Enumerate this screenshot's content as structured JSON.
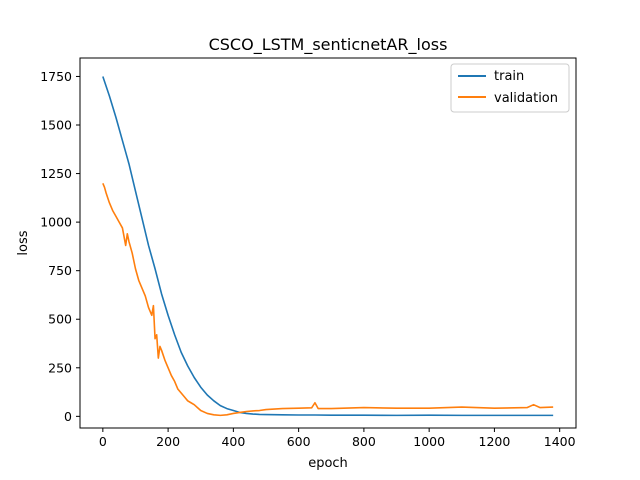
{
  "chart_data": {
    "type": "line",
    "title": "CSCO_LSTM_senticnetAR_loss",
    "xlabel": "epoch",
    "ylabel": "loss",
    "xlim": [
      -70,
      1450
    ],
    "ylim": [
      -60,
      1845
    ],
    "xticks": [
      0,
      200,
      400,
      600,
      800,
      1000,
      1200,
      1400
    ],
    "yticks": [
      0,
      250,
      500,
      750,
      1000,
      1250,
      1500,
      1750
    ],
    "grid": false,
    "legend_position": "top-right",
    "series": [
      {
        "name": "train",
        "color": "#1f77b4",
        "x": [
          0,
          20,
          40,
          60,
          80,
          100,
          120,
          140,
          160,
          180,
          200,
          220,
          240,
          260,
          280,
          300,
          320,
          340,
          360,
          380,
          400,
          420,
          440,
          460,
          480,
          500,
          550,
          600,
          650,
          700,
          800,
          900,
          1000,
          1100,
          1200,
          1300,
          1380
        ],
        "y": [
          1750,
          1650,
          1540,
          1420,
          1300,
          1160,
          1020,
          880,
          760,
          630,
          520,
          420,
          330,
          260,
          200,
          150,
          110,
          80,
          55,
          40,
          30,
          20,
          15,
          12,
          10,
          9,
          8,
          7,
          7,
          6,
          6,
          5,
          6,
          5,
          5,
          5,
          5
        ]
      },
      {
        "name": "validation",
        "color": "#ff7f0e",
        "x": [
          0,
          5,
          10,
          20,
          30,
          40,
          50,
          60,
          70,
          75,
          80,
          90,
          100,
          110,
          120,
          130,
          140,
          150,
          155,
          160,
          165,
          170,
          175,
          180,
          190,
          200,
          210,
          220,
          230,
          240,
          250,
          260,
          270,
          280,
          290,
          300,
          320,
          340,
          360,
          380,
          400,
          420,
          440,
          460,
          480,
          500,
          550,
          600,
          640,
          650,
          660,
          700,
          800,
          900,
          1000,
          1100,
          1200,
          1300,
          1320,
          1340,
          1380
        ],
        "y": [
          1200,
          1180,
          1150,
          1100,
          1060,
          1030,
          1000,
          970,
          880,
          940,
          900,
          840,
          760,
          700,
          660,
          620,
          560,
          520,
          570,
          400,
          420,
          300,
          360,
          340,
          290,
          250,
          210,
          180,
          140,
          120,
          100,
          80,
          70,
          60,
          45,
          30,
          15,
          8,
          5,
          8,
          15,
          20,
          25,
          28,
          30,
          35,
          40,
          42,
          44,
          70,
          40,
          40,
          45,
          42,
          42,
          48,
          42,
          45,
          60,
          45,
          48
        ]
      }
    ]
  }
}
